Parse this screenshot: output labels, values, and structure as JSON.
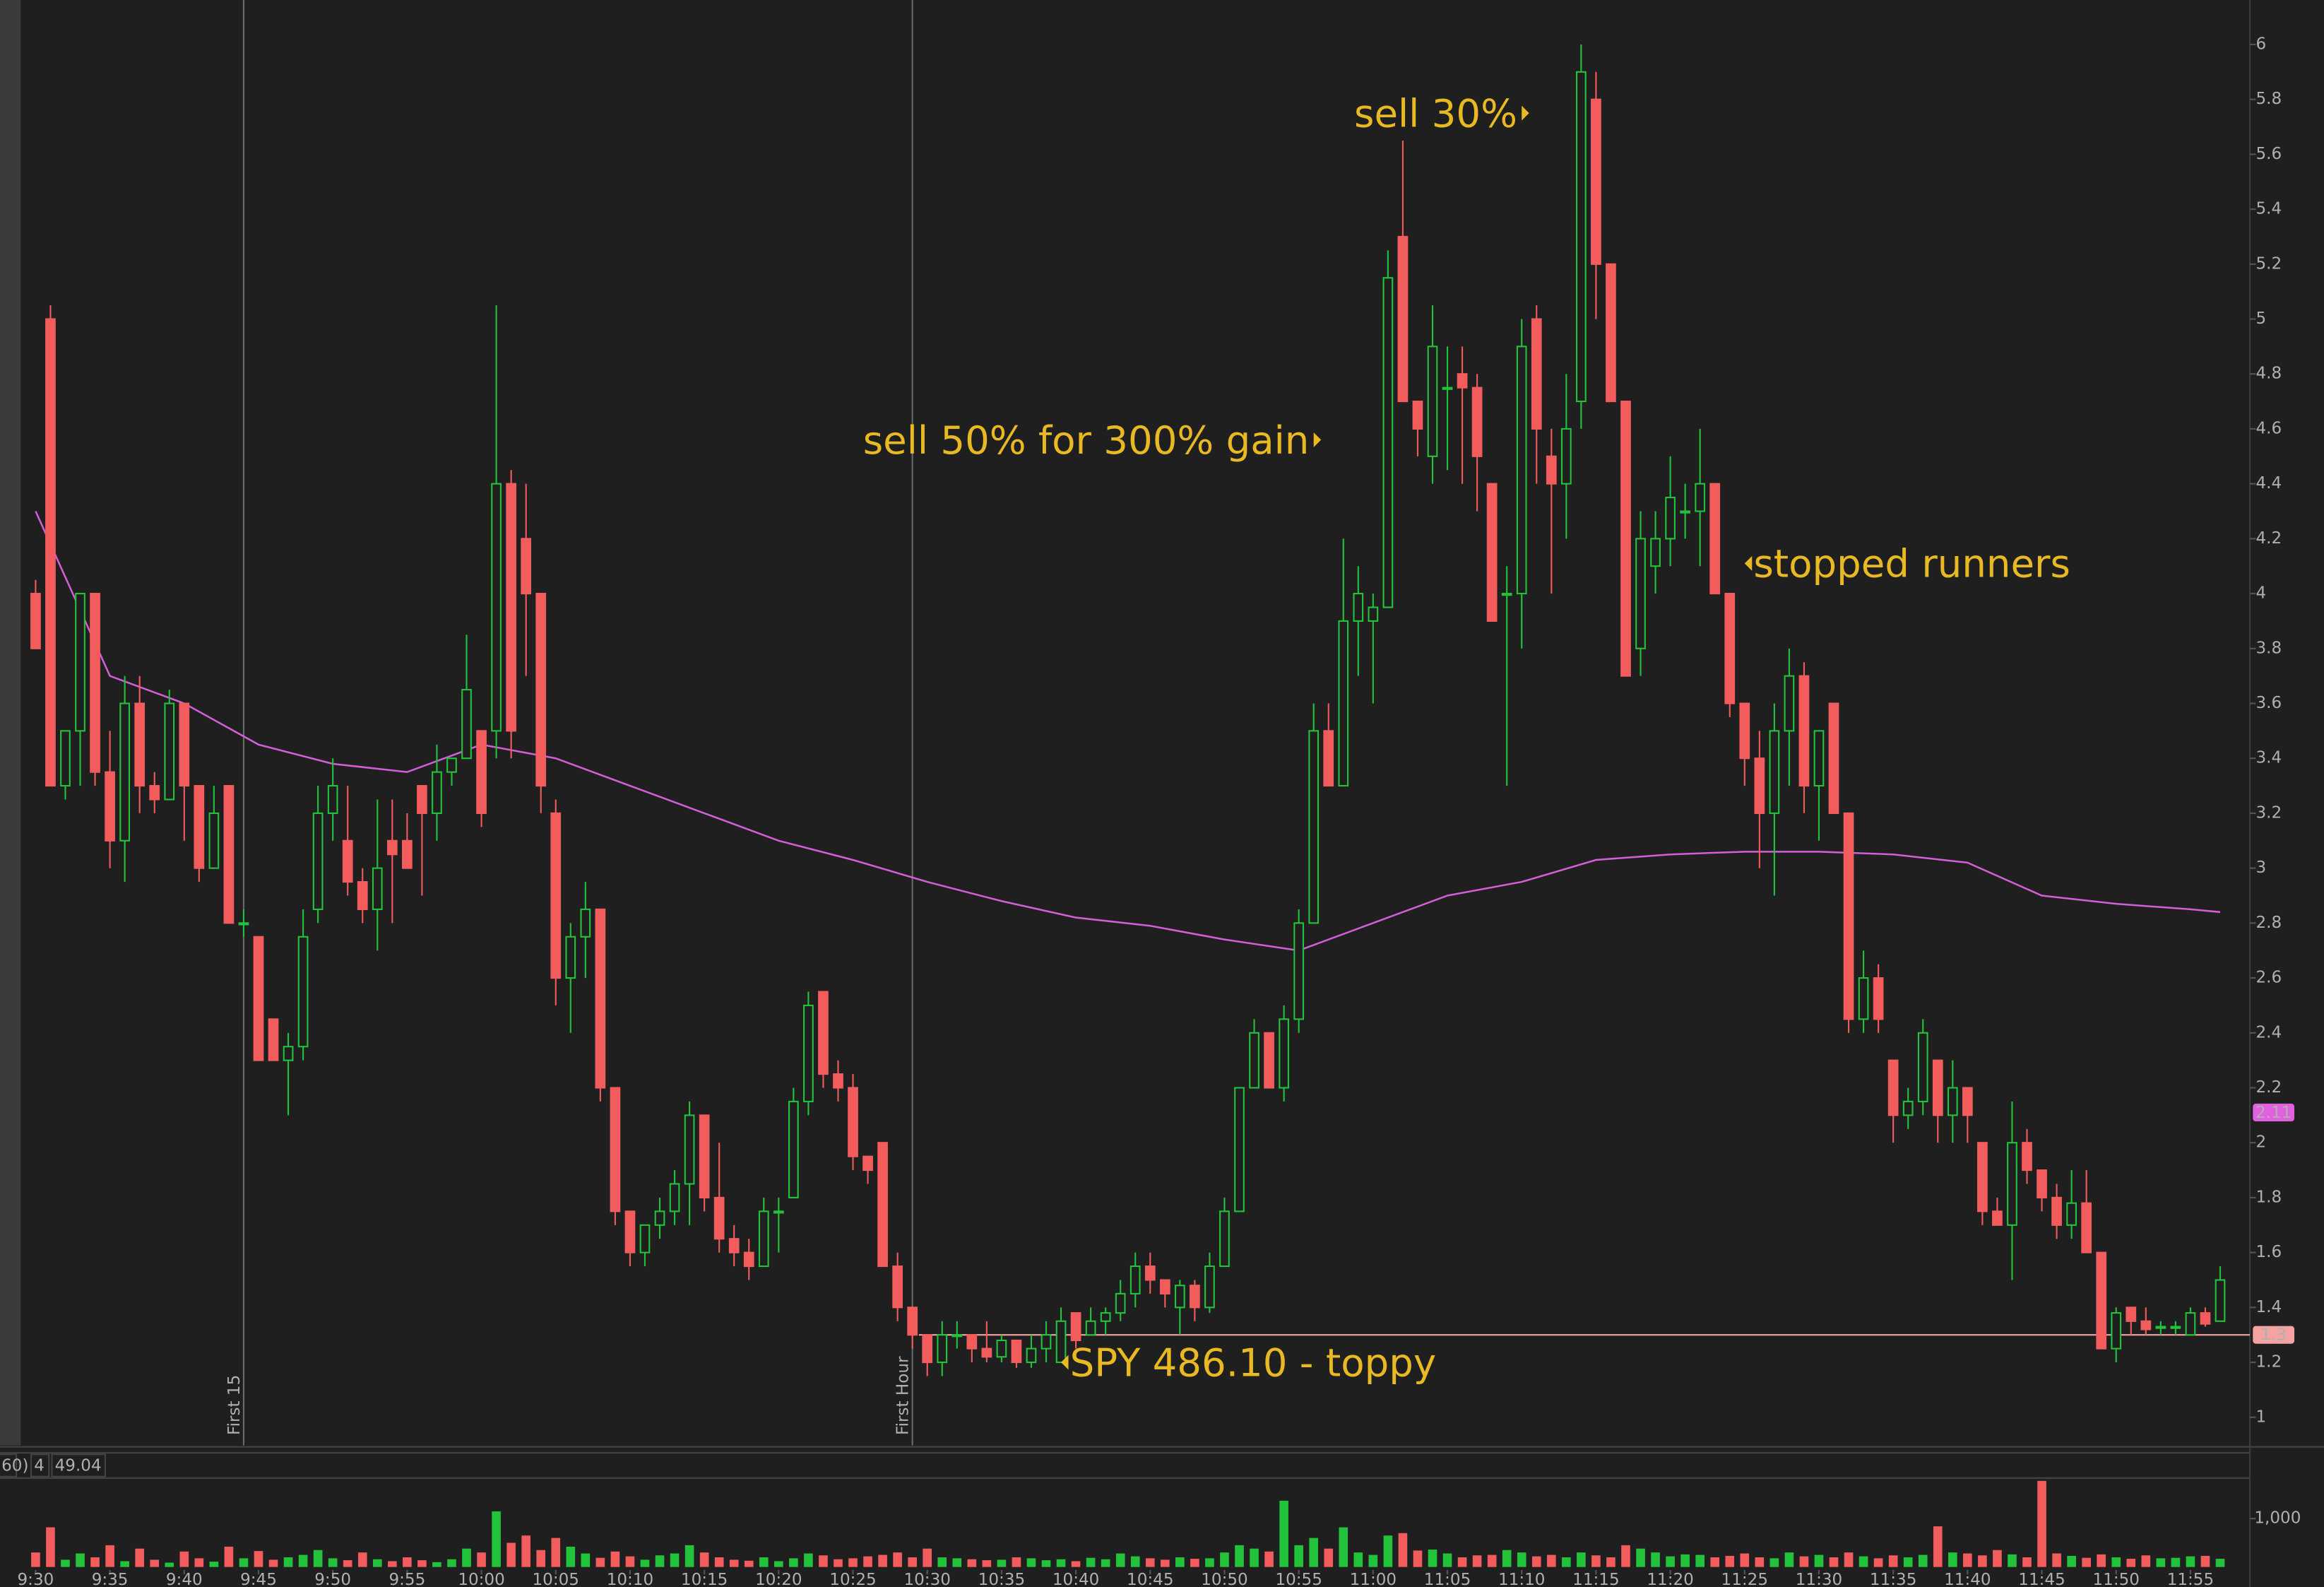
{
  "chart_data": {
    "type": "candlestick",
    "candles": [
      [
        4.0,
        4.05,
        3.8,
        3.8
      ],
      [
        5.0,
        5.05,
        3.3,
        3.3
      ],
      [
        3.3,
        3.5,
        3.25,
        3.5
      ],
      [
        3.5,
        4.0,
        3.3,
        4.0
      ],
      [
        4.0,
        4.0,
        3.3,
        3.35
      ],
      [
        3.35,
        3.5,
        3.0,
        3.1
      ],
      [
        3.1,
        3.7,
        2.95,
        3.6
      ],
      [
        3.6,
        3.7,
        3.2,
        3.3
      ],
      [
        3.3,
        3.35,
        3.2,
        3.25
      ],
      [
        3.25,
        3.65,
        3.25,
        3.6
      ],
      [
        3.6,
        3.6,
        3.1,
        3.3
      ],
      [
        3.3,
        3.3,
        2.95,
        3.0
      ],
      [
        3.0,
        3.3,
        3.0,
        3.2
      ],
      [
        3.3,
        3.3,
        2.8,
        2.8
      ],
      [
        2.8,
        2.85,
        2.75,
        2.8
      ],
      [
        2.75,
        2.75,
        2.3,
        2.3
      ],
      [
        2.45,
        2.45,
        2.3,
        2.3
      ],
      [
        2.3,
        2.4,
        2.1,
        2.35
      ],
      [
        2.35,
        2.85,
        2.3,
        2.75
      ],
      [
        2.85,
        3.3,
        2.8,
        3.2
      ],
      [
        3.2,
        3.4,
        3.1,
        3.3
      ],
      [
        3.1,
        3.3,
        2.9,
        2.95
      ],
      [
        2.95,
        3.0,
        2.8,
        2.85
      ],
      [
        2.85,
        3.25,
        2.7,
        3.0
      ],
      [
        3.1,
        3.25,
        2.8,
        3.05
      ],
      [
        3.1,
        3.2,
        3.0,
        3.0
      ],
      [
        3.3,
        3.3,
        2.9,
        3.2
      ],
      [
        3.2,
        3.45,
        3.1,
        3.35
      ],
      [
        3.35,
        3.4,
        3.3,
        3.4
      ],
      [
        3.4,
        3.85,
        3.4,
        3.65
      ],
      [
        3.5,
        3.5,
        3.15,
        3.2
      ],
      [
        3.5,
        5.05,
        3.4,
        4.4
      ],
      [
        4.4,
        4.45,
        3.4,
        3.5
      ],
      [
        4.2,
        4.4,
        3.7,
        4.0
      ],
      [
        4.0,
        4.0,
        3.2,
        3.3
      ],
      [
        3.2,
        3.25,
        2.5,
        2.6
      ],
      [
        2.6,
        2.8,
        2.4,
        2.75
      ],
      [
        2.75,
        2.95,
        2.6,
        2.85
      ],
      [
        2.85,
        2.85,
        2.15,
        2.2
      ],
      [
        2.2,
        2.2,
        1.7,
        1.75
      ],
      [
        1.75,
        1.75,
        1.55,
        1.6
      ],
      [
        1.6,
        1.7,
        1.55,
        1.7
      ],
      [
        1.7,
        1.8,
        1.65,
        1.75
      ],
      [
        1.75,
        1.9,
        1.7,
        1.85
      ],
      [
        1.85,
        2.15,
        1.7,
        2.1
      ],
      [
        2.1,
        2.1,
        1.75,
        1.8
      ],
      [
        1.8,
        2.0,
        1.6,
        1.65
      ],
      [
        1.65,
        1.7,
        1.55,
        1.6
      ],
      [
        1.6,
        1.65,
        1.5,
        1.55
      ],
      [
        1.55,
        1.8,
        1.55,
        1.75
      ],
      [
        1.75,
        1.8,
        1.6,
        1.75
      ],
      [
        1.8,
        2.2,
        1.8,
        2.15
      ],
      [
        2.15,
        2.55,
        2.1,
        2.5
      ],
      [
        2.55,
        2.55,
        2.2,
        2.25
      ],
      [
        2.25,
        2.3,
        2.15,
        2.2
      ],
      [
        2.2,
        2.25,
        1.9,
        1.95
      ],
      [
        1.95,
        1.95,
        1.85,
        1.9
      ],
      [
        2.0,
        2.0,
        1.55,
        1.55
      ],
      [
        1.55,
        1.6,
        1.35,
        1.4
      ],
      [
        1.4,
        1.4,
        1.25,
        1.3
      ],
      [
        1.3,
        1.3,
        1.15,
        1.2
      ],
      [
        1.2,
        1.35,
        1.15,
        1.3
      ],
      [
        1.3,
        1.35,
        1.25,
        1.3
      ],
      [
        1.3,
        1.3,
        1.2,
        1.25
      ],
      [
        1.25,
        1.35,
        1.2,
        1.22
      ],
      [
        1.22,
        1.3,
        1.2,
        1.28
      ],
      [
        1.28,
        1.28,
        1.18,
        1.2
      ],
      [
        1.2,
        1.3,
        1.18,
        1.25
      ],
      [
        1.25,
        1.35,
        1.2,
        1.3
      ],
      [
        1.2,
        1.4,
        1.2,
        1.35
      ],
      [
        1.38,
        1.38,
        1.25,
        1.28
      ],
      [
        1.3,
        1.4,
        1.3,
        1.35
      ],
      [
        1.35,
        1.4,
        1.3,
        1.38
      ],
      [
        1.38,
        1.5,
        1.35,
        1.45
      ],
      [
        1.45,
        1.6,
        1.4,
        1.55
      ],
      [
        1.55,
        1.6,
        1.45,
        1.5
      ],
      [
        1.5,
        1.5,
        1.4,
        1.45
      ],
      [
        1.4,
        1.5,
        1.3,
        1.48
      ],
      [
        1.48,
        1.5,
        1.35,
        1.4
      ],
      [
        1.4,
        1.6,
        1.38,
        1.55
      ],
      [
        1.55,
        1.8,
        1.55,
        1.75
      ],
      [
        1.75,
        2.2,
        1.75,
        2.2
      ],
      [
        2.2,
        2.45,
        2.2,
        2.4
      ],
      [
        2.4,
        2.4,
        2.2,
        2.2
      ],
      [
        2.2,
        2.5,
        2.15,
        2.45
      ],
      [
        2.45,
        2.85,
        2.4,
        2.8
      ],
      [
        2.8,
        3.6,
        2.8,
        3.5
      ],
      [
        3.5,
        3.6,
        3.3,
        3.3
      ],
      [
        3.3,
        4.2,
        3.3,
        3.9
      ],
      [
        3.9,
        4.1,
        3.7,
        4.0
      ],
      [
        3.9,
        4.0,
        3.6,
        3.95
      ],
      [
        3.95,
        5.25,
        3.95,
        5.15
      ],
      [
        5.3,
        5.65,
        4.7,
        4.7
      ],
      [
        4.7,
        4.7,
        4.5,
        4.6
      ],
      [
        4.5,
        5.05,
        4.4,
        4.9
      ],
      [
        4.75,
        4.9,
        4.45,
        4.75
      ],
      [
        4.8,
        4.9,
        4.4,
        4.75
      ],
      [
        4.75,
        4.8,
        4.3,
        4.5
      ],
      [
        4.4,
        4.4,
        3.9,
        3.9
      ],
      [
        4.0,
        4.1,
        3.3,
        4.0
      ],
      [
        4.0,
        5.0,
        3.8,
        4.9
      ],
      [
        5.0,
        5.05,
        4.4,
        4.6
      ],
      [
        4.5,
        4.6,
        4.0,
        4.4
      ],
      [
        4.4,
        4.8,
        4.2,
        4.6
      ],
      [
        4.7,
        6.0,
        4.6,
        5.9
      ],
      [
        5.8,
        5.9,
        5.0,
        5.2
      ],
      [
        5.2,
        5.2,
        4.7,
        4.7
      ],
      [
        4.7,
        4.7,
        3.7,
        3.7
      ],
      [
        3.8,
        4.3,
        3.7,
        4.2
      ],
      [
        4.1,
        4.3,
        4.0,
        4.2
      ],
      [
        4.2,
        4.5,
        4.1,
        4.35
      ],
      [
        4.3,
        4.4,
        4.2,
        4.3
      ],
      [
        4.3,
        4.6,
        4.1,
        4.4
      ],
      [
        4.4,
        4.4,
        4.0,
        4.0
      ],
      [
        4.0,
        4.0,
        3.55,
        3.6
      ],
      [
        3.6,
        3.6,
        3.3,
        3.4
      ],
      [
        3.4,
        3.5,
        3.0,
        3.2
      ],
      [
        3.2,
        3.6,
        2.9,
        3.5
      ],
      [
        3.5,
        3.8,
        3.3,
        3.7
      ],
      [
        3.7,
        3.75,
        3.2,
        3.3
      ],
      [
        3.3,
        3.5,
        3.1,
        3.5
      ],
      [
        3.6,
        3.6,
        3.2,
        3.2
      ],
      [
        3.2,
        3.2,
        2.4,
        2.45
      ],
      [
        2.45,
        2.7,
        2.4,
        2.6
      ],
      [
        2.6,
        2.65,
        2.4,
        2.45
      ],
      [
        2.3,
        2.3,
        2.0,
        2.1
      ],
      [
        2.1,
        2.2,
        2.05,
        2.15
      ],
      [
        2.15,
        2.45,
        2.1,
        2.4
      ],
      [
        2.3,
        2.3,
        2.0,
        2.1
      ],
      [
        2.1,
        2.3,
        2.0,
        2.2
      ],
      [
        2.2,
        2.2,
        2.0,
        2.1
      ],
      [
        2.0,
        2.0,
        1.7,
        1.75
      ],
      [
        1.75,
        1.8,
        1.7,
        1.7
      ],
      [
        1.7,
        2.15,
        1.5,
        2.0
      ],
      [
        2.0,
        2.05,
        1.85,
        1.9
      ],
      [
        1.9,
        1.9,
        1.75,
        1.8
      ],
      [
        1.8,
        1.85,
        1.65,
        1.7
      ],
      [
        1.7,
        1.9,
        1.65,
        1.78
      ],
      [
        1.78,
        1.9,
        1.6,
        1.6
      ],
      [
        1.6,
        1.6,
        1.25,
        1.25
      ],
      [
        1.25,
        1.4,
        1.2,
        1.38
      ],
      [
        1.4,
        1.4,
        1.3,
        1.35
      ],
      [
        1.35,
        1.4,
        1.3,
        1.32
      ],
      [
        1.33,
        1.35,
        1.3,
        1.33
      ],
      [
        1.33,
        1.35,
        1.3,
        1.33
      ],
      [
        1.3,
        1.4,
        1.3,
        1.38
      ],
      [
        1.38,
        1.4,
        1.33,
        1.34
      ],
      [
        1.35,
        1.55,
        1.35,
        1.5
      ]
    ],
    "up_color": "#22c33a",
    "down_color": "#f25c5c",
    "ma": {
      "color": "#d35fd8",
      "x": [
        0,
        5,
        10,
        15,
        20,
        25,
        30,
        35,
        40,
        45,
        50,
        55,
        60,
        65,
        70,
        75,
        80,
        85,
        90,
        95,
        100,
        105,
        110,
        115,
        120,
        125,
        130,
        135,
        140,
        145,
        147
      ],
      "values": [
        4.3,
        3.7,
        3.6,
        3.45,
        3.38,
        3.35,
        3.45,
        3.4,
        3.3,
        3.2,
        3.1,
        3.03,
        2.95,
        2.88,
        2.82,
        2.79,
        2.74,
        2.7,
        2.8,
        2.9,
        2.95,
        3.03,
        3.05,
        3.06,
        3.06,
        3.05,
        3.02,
        2.9,
        2.87,
        2.85,
        2.84
      ]
    },
    "ylim": [
      1,
      6
    ],
    "yticks": [
      1,
      1.2,
      1.4,
      1.6,
      1.8,
      2,
      2.2,
      2.4,
      2.6,
      2.8,
      3,
      3.2,
      3.4,
      3.6,
      3.8,
      4,
      4.2,
      4.4,
      4.6,
      4.8,
      5,
      5.2,
      5.4,
      5.6,
      5.8,
      6
    ],
    "xlim": [
      -1,
      149
    ],
    "xticks": [
      {
        "value": 0,
        "label": "9:30"
      },
      {
        "value": 5,
        "label": "9:35"
      },
      {
        "value": 10,
        "label": "9:40"
      },
      {
        "value": 15,
        "label": "9:45"
      },
      {
        "value": 20,
        "label": "9:50"
      },
      {
        "value": 25,
        "label": "9:55"
      },
      {
        "value": 30,
        "label": "10:00"
      },
      {
        "value": 35,
        "label": "10:05"
      },
      {
        "value": 40,
        "label": "10:10"
      },
      {
        "value": 45,
        "label": "10:15"
      },
      {
        "value": 50,
        "label": "10:20"
      },
      {
        "value": 55,
        "label": "10:25"
      },
      {
        "value": 60,
        "label": "10:30"
      },
      {
        "value": 65,
        "label": "10:35"
      },
      {
        "value": 70,
        "label": "10:40"
      },
      {
        "value": 75,
        "label": "10:45"
      },
      {
        "value": 80,
        "label": "10:50"
      },
      {
        "value": 85,
        "label": "10:55"
      },
      {
        "value": 90,
        "label": "11:00"
      },
      {
        "value": 95,
        "label": "11:05"
      },
      {
        "value": 100,
        "label": "11:10"
      },
      {
        "value": 105,
        "label": "11:15"
      },
      {
        "value": 110,
        "label": "11:20"
      },
      {
        "value": 115,
        "label": "11:25"
      },
      {
        "value": 120,
        "label": "11:30"
      },
      {
        "value": 125,
        "label": "11:35"
      },
      {
        "value": 130,
        "label": "11:40"
      },
      {
        "value": 135,
        "label": "11:45"
      },
      {
        "value": 140,
        "label": "11:50"
      },
      {
        "value": 145,
        "label": "11:55"
      }
    ],
    "markers": [
      {
        "x": 14,
        "label": "First 15"
      },
      {
        "x": 59,
        "label": "First Hour"
      }
    ],
    "price_labels": [
      {
        "value": 2.11,
        "color": "#e060e0",
        "line": false
      },
      {
        "value": 1.3,
        "color": "#f4a3a3",
        "line": true
      }
    ],
    "annotations": [
      {
        "text": "sell 30%",
        "x": 100,
        "y": 5.75,
        "pointer": "right"
      },
      {
        "text": "sell 50% for 300% gain",
        "x": 86,
        "y": 4.56,
        "pointer": "right"
      },
      {
        "text": "stopped runners",
        "x": 115,
        "y": 4.11,
        "pointer": "left"
      },
      {
        "text": "SPY 486.10 - toppy",
        "x": 69,
        "y": 1.2,
        "pointer": "left"
      }
    ],
    "volume": {
      "header": [
        "60)",
        "4",
        "49.04"
      ],
      "ylim": [
        0,
        1900
      ],
      "yticks": [
        {
          "value": 1000,
          "label": "1,000"
        }
      ],
      "values": [
        300,
        820,
        150,
        280,
        200,
        450,
        120,
        380,
        150,
        90,
        320,
        180,
        110,
        420,
        180,
        330,
        150,
        200,
        250,
        350,
        180,
        140,
        300,
        160,
        120,
        200,
        140,
        100,
        160,
        380,
        300,
        1150,
        500,
        650,
        350,
        600,
        420,
        280,
        190,
        320,
        220,
        150,
        240,
        280,
        450,
        300,
        200,
        150,
        130,
        200,
        120,
        180,
        280,
        240,
        160,
        180,
        220,
        250,
        300,
        200,
        380,
        200,
        180,
        160,
        140,
        150,
        200,
        180,
        140,
        160,
        120,
        190,
        160,
        280,
        220,
        180,
        150,
        200,
        170,
        180,
        300,
        450,
        380,
        320,
        1370,
        450,
        600,
        380,
        820,
        300,
        250,
        650,
        700,
        340,
        360,
        280,
        200,
        240,
        250,
        350,
        300,
        220,
        250,
        200,
        300,
        240,
        200,
        450,
        380,
        300,
        220,
        260,
        250,
        200,
        230,
        280,
        200,
        180,
        300,
        220,
        250,
        200,
        300,
        220,
        180,
        240,
        200,
        250,
        840,
        300,
        280,
        240,
        350,
        260,
        200,
        1780,
        280,
        230,
        190,
        260,
        200,
        170,
        240,
        180,
        190,
        220,
        230,
        170
      ]
    }
  }
}
